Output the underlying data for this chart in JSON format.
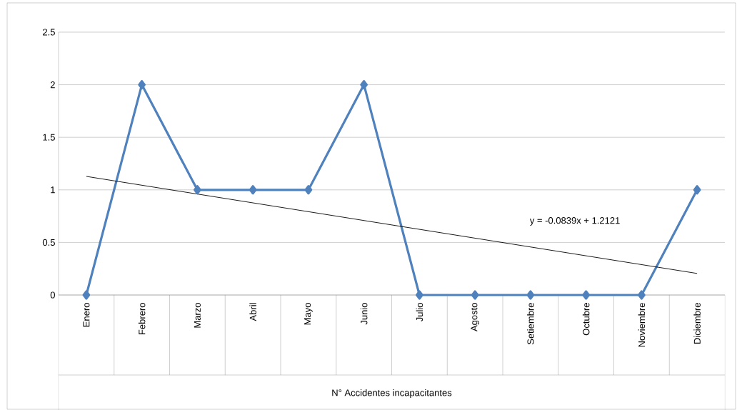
{
  "chart_data": {
    "type": "line",
    "xlabel": "N° Accidentes incapacitantes",
    "categories": [
      "Enero",
      "Febrero",
      "Marzo",
      "Abril",
      "Mayo",
      "Junio",
      "Julio",
      "Agosto",
      "Setiembre",
      "Octubre",
      "Noviembre",
      "Diciembre"
    ],
    "series": [
      {
        "color": "#4f81bd",
        "values": [
          0,
          2,
          1,
          1,
          1,
          2,
          0,
          0,
          0,
          0,
          0,
          1
        ]
      },
      {
        "type": "line",
        "color": "#000000",
        "marker": "none",
        "x": [
          "Enero",
          "Diciembre"
        ],
        "values": [
          1.128,
          0.205
        ]
      }
    ],
    "ylim": [
      0,
      2.5
    ],
    "yticks": [
      0,
      0.5,
      1,
      1.5,
      2,
      2.5
    ],
    "grid": "y",
    "marker": "diamond",
    "line_style": "solid",
    "annotations": [
      "y = -0.0839x + 1.2121"
    ]
  }
}
